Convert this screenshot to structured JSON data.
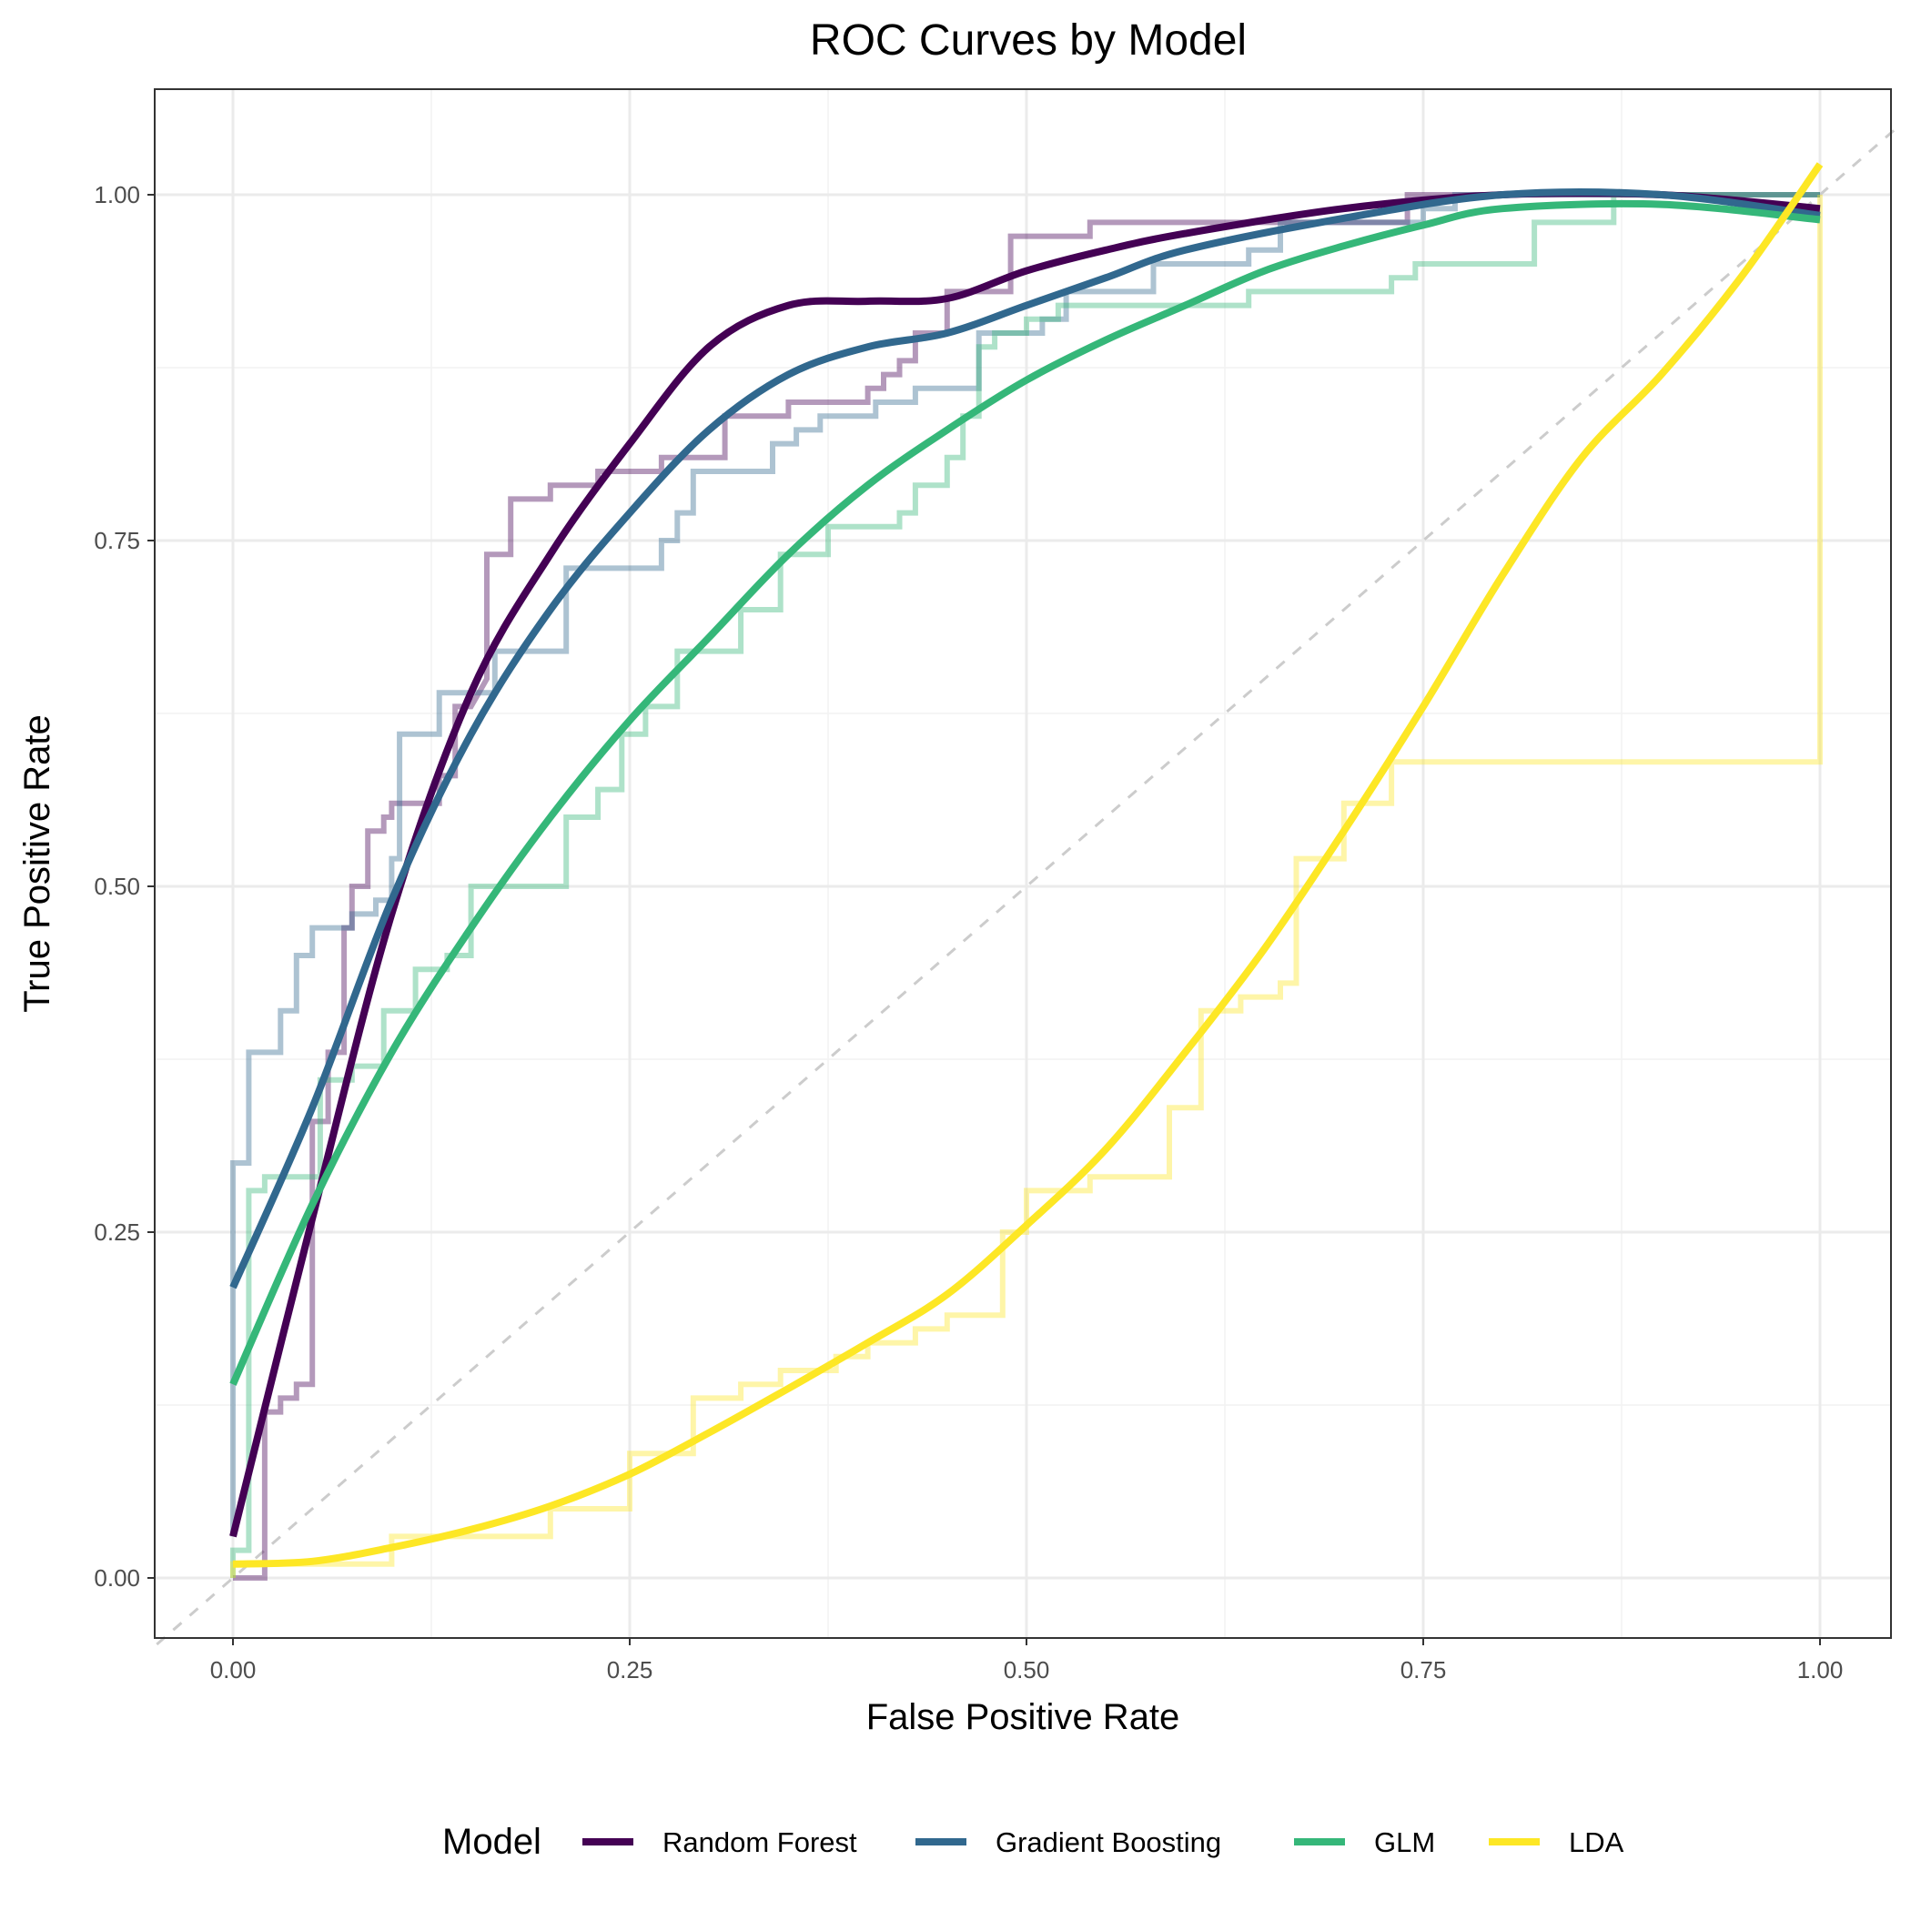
{
  "chart_data": {
    "type": "line",
    "title": "ROC Curves by Model",
    "xlabel": "False Positive Rate",
    "ylabel": "True Positive Rate",
    "xlim": [
      -0.048,
      1.048
    ],
    "ylim": [
      -0.05,
      1.075
    ],
    "x_ticks": [
      "0.00",
      "0.25",
      "0.50",
      "0.75",
      "1.00"
    ],
    "y_ticks": [
      "0.00",
      "0.25",
      "0.50",
      "0.75",
      "1.00"
    ],
    "grid": true,
    "reference_line": {
      "x": [
        0,
        1
      ],
      "y": [
        0,
        1
      ],
      "style": "dashed",
      "color": "#cccccc"
    },
    "legend": {
      "title": "Model",
      "position": "bottom"
    },
    "series": [
      {
        "name": "Random Forest",
        "color": "#440154",
        "roc_steps": [
          [
            0,
            0
          ],
          [
            0.02,
            0
          ],
          [
            0.02,
            0.12
          ],
          [
            0.03,
            0.12
          ],
          [
            0.03,
            0.13
          ],
          [
            0.04,
            0.13
          ],
          [
            0.04,
            0.14
          ],
          [
            0.05,
            0.14
          ],
          [
            0.05,
            0.33
          ],
          [
            0.06,
            0.33
          ],
          [
            0.06,
            0.38
          ],
          [
            0.07,
            0.38
          ],
          [
            0.07,
            0.47
          ],
          [
            0.075,
            0.47
          ],
          [
            0.075,
            0.48
          ],
          [
            0.075,
            0.5
          ],
          [
            0.085,
            0.5
          ],
          [
            0.085,
            0.54
          ],
          [
            0.095,
            0.54
          ],
          [
            0.095,
            0.55
          ],
          [
            0.1,
            0.55
          ],
          [
            0.1,
            0.56
          ],
          [
            0.13,
            0.56
          ],
          [
            0.13,
            0.58
          ],
          [
            0.14,
            0.58
          ],
          [
            0.14,
            0.63
          ],
          [
            0.15,
            0.63
          ],
          [
            0.16,
            0.65
          ],
          [
            0.16,
            0.74
          ],
          [
            0.175,
            0.74
          ],
          [
            0.175,
            0.78
          ],
          [
            0.2,
            0.78
          ],
          [
            0.2,
            0.79
          ],
          [
            0.23,
            0.79
          ],
          [
            0.23,
            0.8
          ],
          [
            0.27,
            0.8
          ],
          [
            0.27,
            0.81
          ],
          [
            0.31,
            0.81
          ],
          [
            0.31,
            0.84
          ],
          [
            0.35,
            0.84
          ],
          [
            0.35,
            0.85
          ],
          [
            0.4,
            0.85
          ],
          [
            0.4,
            0.86
          ],
          [
            0.41,
            0.86
          ],
          [
            0.41,
            0.87
          ],
          [
            0.42,
            0.87
          ],
          [
            0.42,
            0.88
          ],
          [
            0.43,
            0.88
          ],
          [
            0.43,
            0.9
          ],
          [
            0.45,
            0.9
          ],
          [
            0.45,
            0.93
          ],
          [
            0.49,
            0.93
          ],
          [
            0.49,
            0.97
          ],
          [
            0.54,
            0.97
          ],
          [
            0.54,
            0.98
          ],
          [
            0.74,
            0.98
          ],
          [
            0.74,
            1
          ],
          [
            1,
            1
          ]
        ],
        "smooth": [
          [
            0,
            0.03
          ],
          [
            0.05,
            0.26
          ],
          [
            0.1,
            0.48
          ],
          [
            0.15,
            0.64
          ],
          [
            0.2,
            0.74
          ],
          [
            0.25,
            0.82
          ],
          [
            0.3,
            0.89
          ],
          [
            0.35,
            0.92
          ],
          [
            0.4,
            0.923
          ],
          [
            0.45,
            0.925
          ],
          [
            0.5,
            0.945
          ],
          [
            0.55,
            0.96
          ],
          [
            0.6,
            0.972
          ],
          [
            0.7,
            0.99
          ],
          [
            0.8,
            1.0
          ],
          [
            0.9,
            1.0
          ],
          [
            1,
            0.99
          ]
        ]
      },
      {
        "name": "Gradient Boosting",
        "color": "#31688e",
        "roc_steps": [
          [
            0,
            0.03
          ],
          [
            0,
            0.3
          ],
          [
            0.01,
            0.3
          ],
          [
            0.01,
            0.38
          ],
          [
            0.03,
            0.38
          ],
          [
            0.03,
            0.41
          ],
          [
            0.04,
            0.41
          ],
          [
            0.04,
            0.45
          ],
          [
            0.05,
            0.45
          ],
          [
            0.05,
            0.47
          ],
          [
            0.075,
            0.47
          ],
          [
            0.075,
            0.48
          ],
          [
            0.09,
            0.48
          ],
          [
            0.09,
            0.49
          ],
          [
            0.1,
            0.49
          ],
          [
            0.1,
            0.52
          ],
          [
            0.105,
            0.52
          ],
          [
            0.105,
            0.61
          ],
          [
            0.13,
            0.61
          ],
          [
            0.13,
            0.64
          ],
          [
            0.165,
            0.64
          ],
          [
            0.165,
            0.67
          ],
          [
            0.21,
            0.67
          ],
          [
            0.21,
            0.73
          ],
          [
            0.27,
            0.73
          ],
          [
            0.27,
            0.75
          ],
          [
            0.28,
            0.75
          ],
          [
            0.28,
            0.77
          ],
          [
            0.29,
            0.77
          ],
          [
            0.29,
            0.8
          ],
          [
            0.34,
            0.8
          ],
          [
            0.34,
            0.82
          ],
          [
            0.355,
            0.82
          ],
          [
            0.355,
            0.83
          ],
          [
            0.37,
            0.83
          ],
          [
            0.37,
            0.84
          ],
          [
            0.405,
            0.84
          ],
          [
            0.405,
            0.85
          ],
          [
            0.43,
            0.85
          ],
          [
            0.43,
            0.86
          ],
          [
            0.47,
            0.86
          ],
          [
            0.47,
            0.9
          ],
          [
            0.51,
            0.9
          ],
          [
            0.51,
            0.91
          ],
          [
            0.525,
            0.91
          ],
          [
            0.525,
            0.93
          ],
          [
            0.58,
            0.93
          ],
          [
            0.58,
            0.95
          ],
          [
            0.64,
            0.95
          ],
          [
            0.64,
            0.96
          ],
          [
            0.66,
            0.96
          ],
          [
            0.66,
            0.98
          ],
          [
            0.75,
            0.98
          ],
          [
            0.75,
            0.99
          ],
          [
            0.77,
            0.99
          ],
          [
            0.77,
            1
          ],
          [
            1,
            1
          ]
        ],
        "smooth": [
          [
            0,
            0.21
          ],
          [
            0.05,
            0.34
          ],
          [
            0.1,
            0.49
          ],
          [
            0.15,
            0.61
          ],
          [
            0.2,
            0.7
          ],
          [
            0.25,
            0.77
          ],
          [
            0.3,
            0.83
          ],
          [
            0.35,
            0.87
          ],
          [
            0.4,
            0.89
          ],
          [
            0.45,
            0.9
          ],
          [
            0.5,
            0.92
          ],
          [
            0.55,
            0.94
          ],
          [
            0.6,
            0.96
          ],
          [
            0.7,
            0.983
          ],
          [
            0.8,
            1.0
          ],
          [
            0.9,
            1.0
          ],
          [
            1,
            0.985
          ]
        ]
      },
      {
        "name": "GLM",
        "color": "#35b779",
        "roc_steps": [
          [
            0,
            0
          ],
          [
            0,
            0.02
          ],
          [
            0.01,
            0.02
          ],
          [
            0.01,
            0.28
          ],
          [
            0.02,
            0.28
          ],
          [
            0.02,
            0.29
          ],
          [
            0.055,
            0.29
          ],
          [
            0.055,
            0.36
          ],
          [
            0.075,
            0.36
          ],
          [
            0.075,
            0.37
          ],
          [
            0.095,
            0.37
          ],
          [
            0.095,
            0.41
          ],
          [
            0.115,
            0.41
          ],
          [
            0.115,
            0.44
          ],
          [
            0.135,
            0.44
          ],
          [
            0.135,
            0.45
          ],
          [
            0.15,
            0.45
          ],
          [
            0.15,
            0.5
          ],
          [
            0.21,
            0.5
          ],
          [
            0.21,
            0.55
          ],
          [
            0.23,
            0.55
          ],
          [
            0.23,
            0.57
          ],
          [
            0.245,
            0.57
          ],
          [
            0.245,
            0.61
          ],
          [
            0.26,
            0.61
          ],
          [
            0.26,
            0.63
          ],
          [
            0.28,
            0.63
          ],
          [
            0.28,
            0.67
          ],
          [
            0.32,
            0.67
          ],
          [
            0.32,
            0.7
          ],
          [
            0.345,
            0.7
          ],
          [
            0.345,
            0.74
          ],
          [
            0.375,
            0.74
          ],
          [
            0.375,
            0.76
          ],
          [
            0.42,
            0.76
          ],
          [
            0.42,
            0.77
          ],
          [
            0.43,
            0.77
          ],
          [
            0.43,
            0.79
          ],
          [
            0.45,
            0.79
          ],
          [
            0.45,
            0.81
          ],
          [
            0.46,
            0.81
          ],
          [
            0.46,
            0.84
          ],
          [
            0.47,
            0.84
          ],
          [
            0.47,
            0.89
          ],
          [
            0.48,
            0.89
          ],
          [
            0.48,
            0.9
          ],
          [
            0.5,
            0.9
          ],
          [
            0.5,
            0.91
          ],
          [
            0.52,
            0.91
          ],
          [
            0.52,
            0.92
          ],
          [
            0.64,
            0.92
          ],
          [
            0.64,
            0.93
          ],
          [
            0.73,
            0.93
          ],
          [
            0.73,
            0.94
          ],
          [
            0.745,
            0.94
          ],
          [
            0.745,
            0.95
          ],
          [
            0.82,
            0.95
          ],
          [
            0.82,
            0.98
          ],
          [
            0.87,
            0.98
          ],
          [
            0.87,
            1
          ],
          [
            1,
            1
          ]
        ],
        "smooth": [
          [
            0,
            0.14
          ],
          [
            0.05,
            0.27
          ],
          [
            0.1,
            0.38
          ],
          [
            0.15,
            0.47
          ],
          [
            0.2,
            0.55
          ],
          [
            0.25,
            0.62
          ],
          [
            0.3,
            0.68
          ],
          [
            0.35,
            0.74
          ],
          [
            0.4,
            0.79
          ],
          [
            0.45,
            0.83
          ],
          [
            0.5,
            0.866
          ],
          [
            0.55,
            0.895
          ],
          [
            0.6,
            0.92
          ],
          [
            0.65,
            0.945
          ],
          [
            0.7,
            0.963
          ],
          [
            0.75,
            0.978
          ],
          [
            0.8,
            0.99
          ],
          [
            0.9,
            0.993
          ],
          [
            1,
            0.982
          ]
        ]
      },
      {
        "name": "LDA",
        "color": "#fde725",
        "roc_steps": [
          [
            0,
            0
          ],
          [
            0,
            0.01
          ],
          [
            0.1,
            0.01
          ],
          [
            0.1,
            0.03
          ],
          [
            0.2,
            0.03
          ],
          [
            0.2,
            0.05
          ],
          [
            0.25,
            0.05
          ],
          [
            0.25,
            0.09
          ],
          [
            0.29,
            0.09
          ],
          [
            0.29,
            0.13
          ],
          [
            0.32,
            0.13
          ],
          [
            0.32,
            0.14
          ],
          [
            0.345,
            0.14
          ],
          [
            0.345,
            0.15
          ],
          [
            0.38,
            0.15
          ],
          [
            0.38,
            0.16
          ],
          [
            0.4,
            0.16
          ],
          [
            0.4,
            0.17
          ],
          [
            0.43,
            0.17
          ],
          [
            0.43,
            0.18
          ],
          [
            0.45,
            0.18
          ],
          [
            0.45,
            0.19
          ],
          [
            0.485,
            0.19
          ],
          [
            0.485,
            0.25
          ],
          [
            0.5,
            0.25
          ],
          [
            0.5,
            0.28
          ],
          [
            0.54,
            0.28
          ],
          [
            0.54,
            0.29
          ],
          [
            0.59,
            0.29
          ],
          [
            0.59,
            0.34
          ],
          [
            0.61,
            0.34
          ],
          [
            0.61,
            0.41
          ],
          [
            0.635,
            0.41
          ],
          [
            0.635,
            0.42
          ],
          [
            0.66,
            0.42
          ],
          [
            0.66,
            0.43
          ],
          [
            0.67,
            0.43
          ],
          [
            0.67,
            0.52
          ],
          [
            0.7,
            0.52
          ],
          [
            0.7,
            0.56
          ],
          [
            0.73,
            0.56
          ],
          [
            0.73,
            0.59
          ],
          [
            1,
            0.59
          ],
          [
            1,
            1
          ]
        ],
        "smooth": [
          [
            0,
            0.01
          ],
          [
            0.05,
            0.012
          ],
          [
            0.1,
            0.022
          ],
          [
            0.15,
            0.035
          ],
          [
            0.2,
            0.052
          ],
          [
            0.25,
            0.075
          ],
          [
            0.3,
            0.105
          ],
          [
            0.35,
            0.137
          ],
          [
            0.4,
            0.17
          ],
          [
            0.45,
            0.205
          ],
          [
            0.5,
            0.255
          ],
          [
            0.55,
            0.31
          ],
          [
            0.6,
            0.38
          ],
          [
            0.65,
            0.455
          ],
          [
            0.7,
            0.54
          ],
          [
            0.75,
            0.63
          ],
          [
            0.8,
            0.725
          ],
          [
            0.85,
            0.81
          ],
          [
            0.9,
            0.87
          ],
          [
            0.95,
            0.94
          ],
          [
            1,
            1.022
          ]
        ]
      }
    ]
  }
}
